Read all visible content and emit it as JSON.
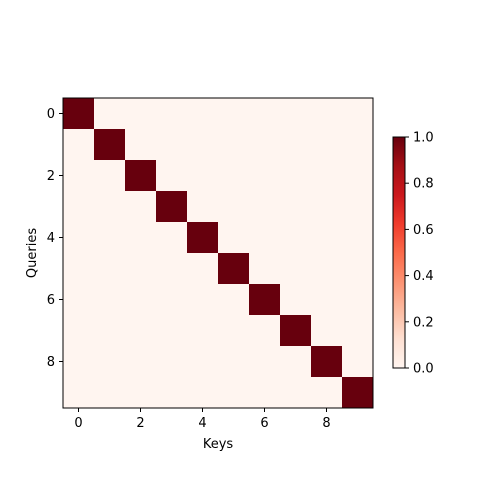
{
  "chart_data": {
    "type": "heatmap",
    "xlabel": "Keys",
    "ylabel": "Queries",
    "x_ticks": [
      0,
      2,
      4,
      6,
      8
    ],
    "y_ticks": [
      0,
      2,
      4,
      6,
      8
    ],
    "rows": 10,
    "cols": 10,
    "values": [
      [
        1,
        0,
        0,
        0,
        0,
        0,
        0,
        0,
        0,
        0
      ],
      [
        0,
        1,
        0,
        0,
        0,
        0,
        0,
        0,
        0,
        0
      ],
      [
        0,
        0,
        1,
        0,
        0,
        0,
        0,
        0,
        0,
        0
      ],
      [
        0,
        0,
        0,
        1,
        0,
        0,
        0,
        0,
        0,
        0
      ],
      [
        0,
        0,
        0,
        0,
        1,
        0,
        0,
        0,
        0,
        0
      ],
      [
        0,
        0,
        0,
        0,
        0,
        1,
        0,
        0,
        0,
        0
      ],
      [
        0,
        0,
        0,
        0,
        0,
        0,
        1,
        0,
        0,
        0
      ],
      [
        0,
        0,
        0,
        0,
        0,
        0,
        0,
        1,
        0,
        0
      ],
      [
        0,
        0,
        0,
        0,
        0,
        0,
        0,
        0,
        1,
        0
      ],
      [
        0,
        0,
        0,
        0,
        0,
        0,
        0,
        0,
        0,
        1
      ]
    ],
    "colorbar": {
      "colormap": "Reds",
      "vmin": 0,
      "vmax": 1,
      "ticks": [
        "0.0",
        "0.2",
        "0.4",
        "0.6",
        "0.8",
        "1.0"
      ]
    }
  }
}
